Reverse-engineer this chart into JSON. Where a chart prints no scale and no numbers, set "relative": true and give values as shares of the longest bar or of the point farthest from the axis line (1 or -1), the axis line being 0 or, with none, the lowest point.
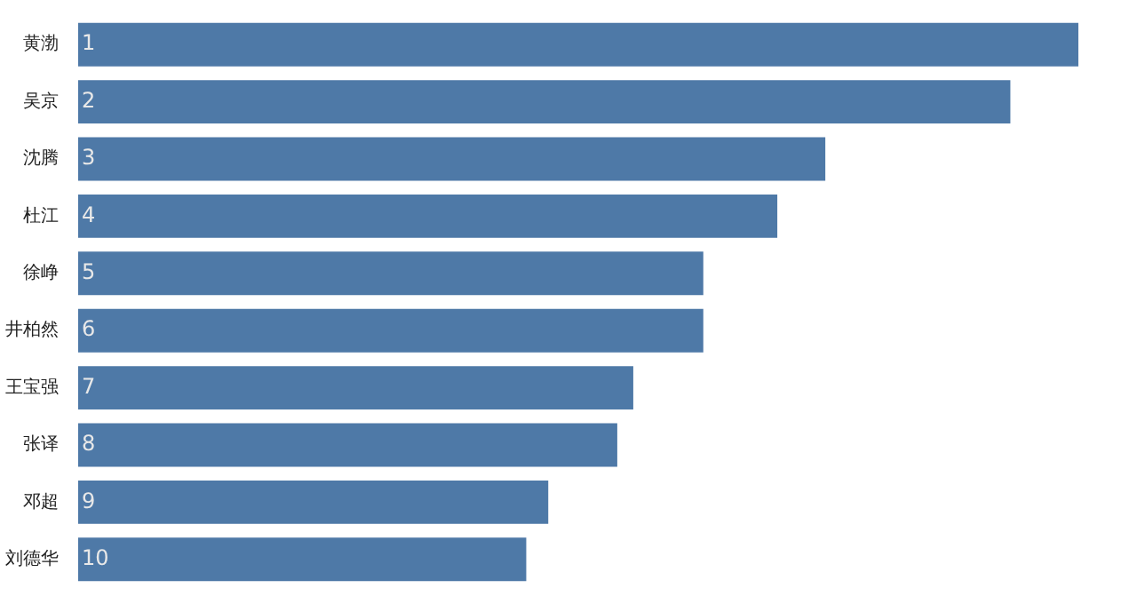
{
  "chart_data": {
    "type": "bar",
    "orientation": "horizontal",
    "relative": true,
    "categories": [
      "黄渤",
      "吴京",
      "沈腾",
      "杜江",
      "徐峥",
      "井柏然",
      "王宝强",
      "张译",
      "邓超",
      "刘德华"
    ],
    "values": [
      1,
      0.932,
      0.747,
      0.699,
      0.625,
      0.625,
      0.555,
      0.539,
      0.47,
      0.448
    ],
    "annotations": [
      {
        "text": "1",
        "y": "黄渤"
      },
      {
        "text": "2",
        "y": "吴京"
      },
      {
        "text": "3",
        "y": "沈腾"
      },
      {
        "text": "4",
        "y": "杜江"
      },
      {
        "text": "5",
        "y": "徐峥"
      },
      {
        "text": "6",
        "y": "井柏然"
      },
      {
        "text": "7",
        "y": "王宝强"
      },
      {
        "text": "8",
        "y": "张译"
      },
      {
        "text": "9",
        "y": "邓超"
      },
      {
        "text": "10",
        "y": "刘德华"
      }
    ],
    "color": "#4e79a7"
  }
}
